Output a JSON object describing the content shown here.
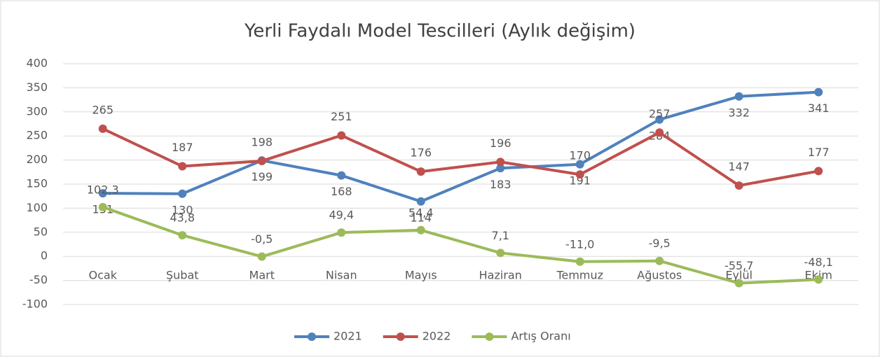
{
  "chart_data": {
    "type": "line",
    "title": "Yerli Faydalı Model Tescilleri (Aylık değişim)",
    "categories": [
      "Ocak",
      "Şubat",
      "Mart",
      "Nisan",
      "Mayıs",
      "Haziran",
      "Temmuz",
      "Ağustos",
      "Eylül",
      "Ekim"
    ],
    "series": [
      {
        "name": "2021",
        "color": "#4f81bd",
        "values": [
          131,
          130,
          199,
          168,
          114,
          183,
          191,
          284,
          332,
          341
        ]
      },
      {
        "name": "2022",
        "color": "#c0504d",
        "values": [
          265,
          187,
          198,
          251,
          176,
          196,
          170,
          257,
          147,
          177
        ]
      },
      {
        "name": "Artış Oranı",
        "color": "#9bbb59",
        "values": [
          102.3,
          43.8,
          -0.5,
          49.4,
          54.4,
          7.1,
          -11.0,
          -9.5,
          -55.7,
          -48.1
        ],
        "value_labels": [
          "102,3",
          "43,8",
          "-0,5",
          "49,4",
          "54,4",
          "7,1",
          "-11,0",
          "-9,5",
          "-55,7",
          "-48,1"
        ]
      }
    ],
    "ylim": [
      -100,
      400
    ],
    "yticks": [
      -100,
      -50,
      0,
      50,
      100,
      150,
      200,
      250,
      300,
      350,
      400
    ],
    "grid": true,
    "legend": "bottom"
  }
}
